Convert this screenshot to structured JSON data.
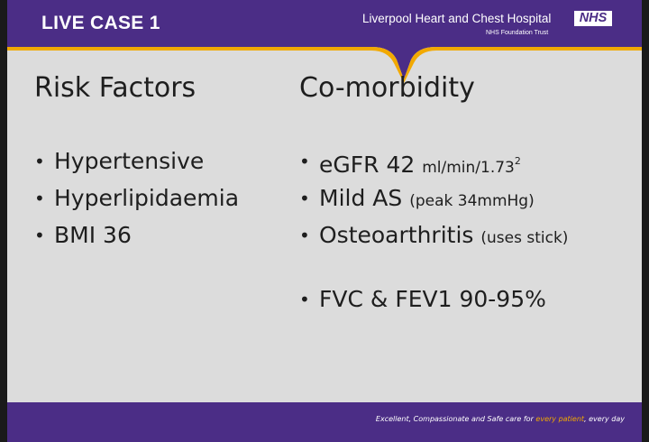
{
  "header": {
    "case_title": "LIVE CASE 1",
    "hospital_name": "Liverpool Heart and Chest Hospital",
    "nhs_logo": "NHS",
    "trust_name": "NHS Foundation Trust"
  },
  "risk_factors": {
    "heading": "Risk Factors",
    "items": [
      "Hypertensive",
      "Hyperlipidaemia",
      "BMI 36"
    ]
  },
  "comorbidity": {
    "heading": "Co-morbidity",
    "items": [
      {
        "main": "eGFR 42",
        "detail": "ml/min/1.73",
        "sup": "2"
      },
      {
        "main": "Mild AS",
        "detail": "(peak 34mmHg)"
      },
      {
        "main": "Osteoarthritis",
        "detail": "(uses stick)"
      },
      {
        "main": "FVC & FEV1 90-95%"
      }
    ]
  },
  "footer": {
    "text_before": "Excellent, Compassionate and Safe care for ",
    "highlight": "every patient",
    "text_after": ", every day"
  },
  "colors": {
    "brand_purple": "#4b2d86",
    "slide_background": "#dcdcdc",
    "accent_yellow": "#f2a900"
  }
}
